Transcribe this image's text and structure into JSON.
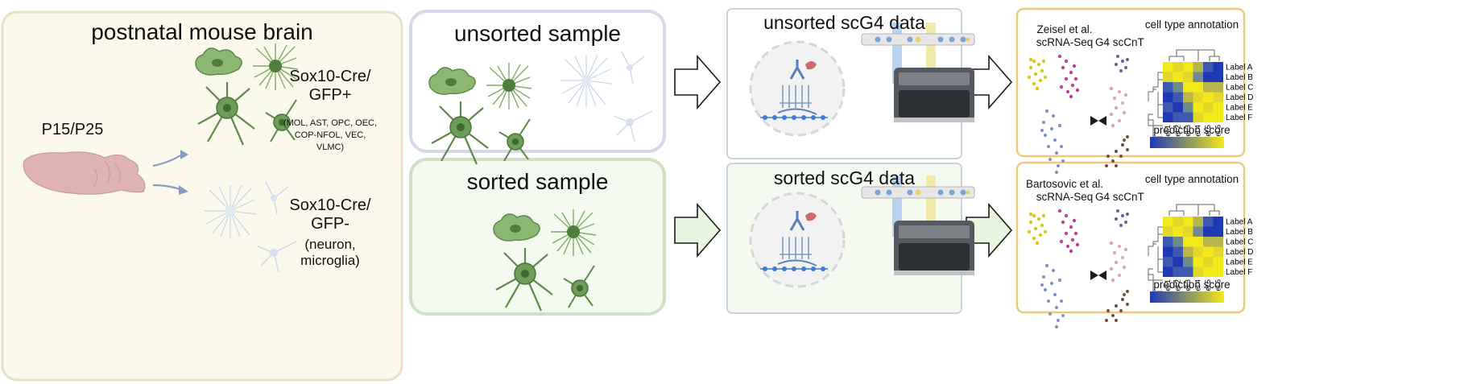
{
  "panel_brain": {
    "title": "postnatal mouse brain",
    "age": "P15/P25",
    "gfp_pos_title": "Sox10-Cre/\nGFP+",
    "gfp_pos_types": "(MOL, AST, OPC, OEC,\nCOP-NFOL, VEC,\nVLMC)",
    "gfp_neg_title": "Sox10-Cre/\nGFP-",
    "gfp_neg_types": "(neuron,\nmicroglia)"
  },
  "panel_unsorted_sample": {
    "title": "unsorted sample"
  },
  "panel_sorted_sample": {
    "title": "sorted sample"
  },
  "panel_unsorted_data": {
    "title": "unsorted scG4 data"
  },
  "panel_sorted_data": {
    "title": "sorted scG4 data"
  },
  "panel_annotation_top": {
    "reference": "Zeisel et al.\nscRNA-Seq",
    "query": "G4 scCnT",
    "heatmap_title": "cell type annotation",
    "score_label": "prediction score"
  },
  "panel_annotation_bottom": {
    "reference": "Bartosovic et al.\nscRNA-Seq",
    "query": "G4 scCnT",
    "heatmap_title": "cell type annotation",
    "score_label": "prediction score"
  },
  "heatmap": {
    "row_labels": [
      "Label A",
      "Label B",
      "Label C",
      "Label D",
      "Label E",
      "Label F"
    ],
    "col_labels": [
      "Label 1",
      "Label 2",
      "Label 3",
      "Label 4",
      "Label 5",
      "Label 6"
    ]
  },
  "colors": {
    "brain_panel_bg": "#fbf8ec",
    "brain_panel_border": "#e8dfc4",
    "unsorted_border": "#d7d8ea",
    "sorted_bg": "#f5faf1",
    "sorted_border": "#cfe0c6",
    "data_border": "#ccd3dc",
    "annot_border": "#ecc97e",
    "cell_green": "#6e9c5a",
    "cell_light": "#c9d6ea",
    "brain": "#dfb3b0",
    "heat_blue": "#1f39b5",
    "heat_yellow": "#f2e81a"
  }
}
